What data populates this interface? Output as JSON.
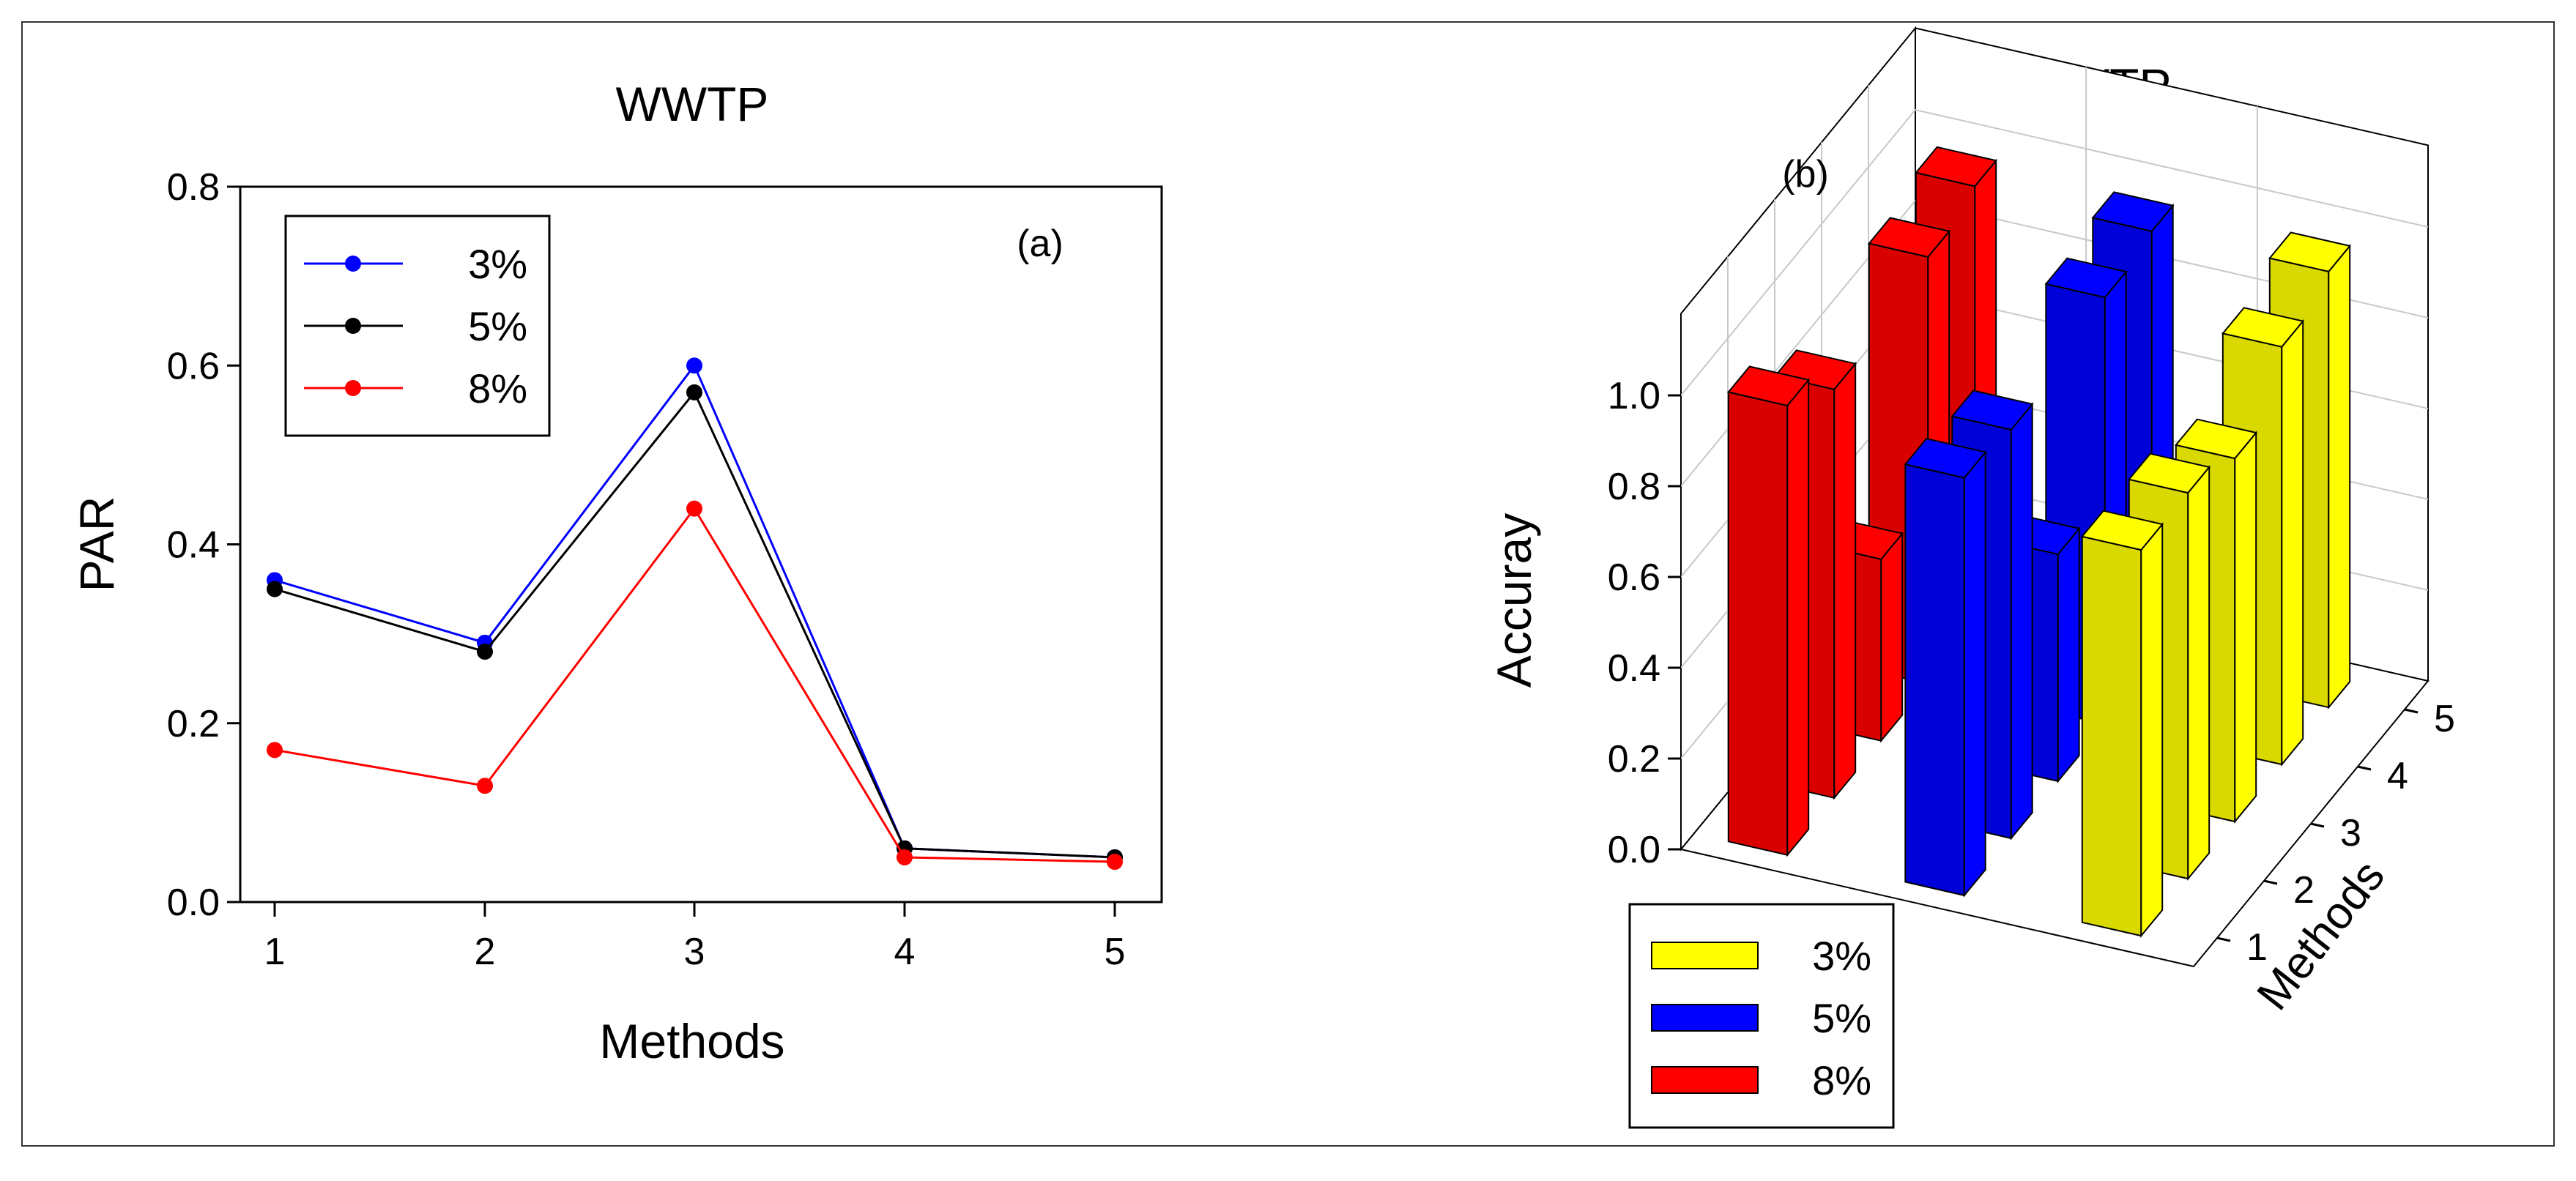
{
  "colors": {
    "blue": "#0000ff",
    "black": "#000000",
    "red": "#ff0000",
    "yellow": "#ffff00"
  },
  "chart_data": [
    {
      "type": "line",
      "title": "WWTP",
      "panel_label": "(a)",
      "xlabel": "Methods",
      "ylabel": "PAR",
      "x": [
        1,
        2,
        3,
        4,
        5
      ],
      "xticks": [
        "1",
        "2",
        "3",
        "4",
        "5"
      ],
      "ylim": [
        0,
        0.8
      ],
      "yticks": [
        "0.0",
        "0.2",
        "0.4",
        "0.6",
        "0.8"
      ],
      "legend_position": "top-left",
      "series": [
        {
          "name": "3%",
          "color": "#0000ff",
          "values": [
            0.36,
            0.29,
            0.6,
            0.06,
            0.05
          ]
        },
        {
          "name": "5%",
          "color": "#000000",
          "values": [
            0.35,
            0.28,
            0.57,
            0.06,
            0.05
          ]
        },
        {
          "name": "8%",
          "color": "#ff0000",
          "values": [
            0.17,
            0.13,
            0.44,
            0.05,
            0.045
          ]
        }
      ]
    },
    {
      "type": "bar3d",
      "title": "WWTP",
      "panel_label": "(b)",
      "ylabel": "Accuray",
      "depth_label": "Methods",
      "zticks": [
        "0.0",
        "0.2",
        "0.4",
        "0.6",
        "0.8",
        "1.0"
      ],
      "depth_ticks": [
        "1",
        "2",
        "3",
        "4",
        "5"
      ],
      "zlim": [
        0,
        1.0
      ],
      "legend_position": "bottom-left",
      "series": [
        {
          "name": "3%",
          "color": "#ffff00",
          "values": [
            0.85,
            0.85,
            0.8,
            0.92,
            0.96
          ]
        },
        {
          "name": "5%",
          "color": "#0000ff",
          "values": [
            0.92,
            0.9,
            0.5,
            0.94,
            0.96
          ]
        },
        {
          "name": "8%",
          "color": "#ff0000",
          "values": [
            0.99,
            0.9,
            0.4,
            0.94,
            0.97
          ]
        }
      ]
    }
  ]
}
